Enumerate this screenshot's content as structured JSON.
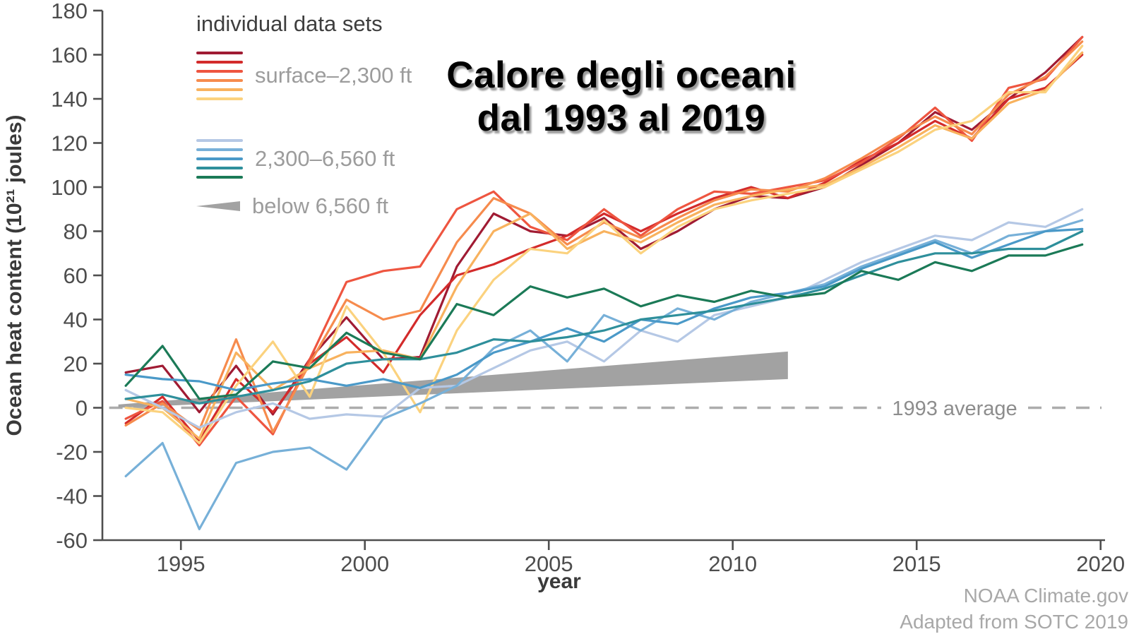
{
  "title": {
    "line1": "Calore degli oceani",
    "line2": "dal 1993 al 2019"
  },
  "legend": {
    "title": "individual data sets",
    "groups": [
      {
        "id": "surface",
        "label": "surface–2,300 ft"
      },
      {
        "id": "mid",
        "label": "2,300–6,560 ft"
      },
      {
        "id": "deep",
        "label": "below 6,560 ft"
      }
    ]
  },
  "axes": {
    "xlabel": "year",
    "ylabel": "Ocean heat content (10²¹ joules)"
  },
  "attribution": {
    "line1": "NOAA Climate.gov",
    "line2": "Adapted from SOTC 2019"
  },
  "colors": {
    "axis": "#4f4f4f",
    "tick_label": "#4d4d4d",
    "baseline_dash": "#acacac",
    "baseline_label": "#8d8d8d",
    "wedge": "#a2a2a2",
    "legend_title": "#3e3e3e",
    "legend_label": "#9c9c9c",
    "attribution": "#a8a8a8",
    "title": "#000000"
  },
  "chart_data": {
    "type": "line",
    "title": "Calore degli oceani dal 1993 al 2019",
    "xlabel": "year",
    "ylabel": "Ocean heat content (10²¹ joules)",
    "xlim": [
      1993,
      2020.2
    ],
    "ylim": [
      -60,
      180
    ],
    "x_ticks": [
      1995,
      2000,
      2005,
      2010,
      2015,
      2020
    ],
    "y_ticks": [
      180,
      160,
      140,
      120,
      100,
      80,
      60,
      40,
      20,
      0,
      -20,
      -40,
      -60
    ],
    "grid": false,
    "legend_position": "top-left",
    "baseline": {
      "value": 0,
      "label": "1993 average",
      "style": "dashed"
    },
    "x_years": [
      1993.5,
      1994.5,
      1995.5,
      1996.5,
      1997.5,
      1998.5,
      1999.5,
      2000.5,
      2001.5,
      2002.5,
      2003.5,
      2004.5,
      2005.5,
      2006.5,
      2007.5,
      2008.5,
      2009.5,
      2010.5,
      2011.5,
      2012.5,
      2013.5,
      2014.5,
      2015.5,
      2016.5,
      2017.5,
      2018.5,
      2019.5
    ],
    "series": [
      {
        "name": "surface-darkred",
        "group": "surface",
        "color": "#a01b33",
        "values": [
          16,
          19,
          -2,
          19,
          -3,
          22,
          41,
          22,
          23,
          64,
          88,
          80,
          78,
          86,
          72,
          80,
          90,
          96,
          95,
          100,
          110,
          120,
          134,
          126,
          140,
          152,
          168
        ]
      },
      {
        "name": "surface-red",
        "group": "surface",
        "color": "#d32b2b",
        "values": [
          -7,
          5,
          -15,
          13,
          -2,
          20,
          32,
          16,
          42,
          60,
          65,
          72,
          78,
          88,
          80,
          88,
          95,
          100,
          95,
          102,
          112,
          120,
          130,
          122,
          140,
          145,
          160
        ]
      },
      {
        "name": "surface-redorange",
        "group": "surface",
        "color": "#ee5540",
        "values": [
          -5,
          3,
          -17,
          5,
          -12,
          22,
          57,
          62,
          64,
          90,
          98,
          82,
          76,
          90,
          78,
          90,
          98,
          97,
          100,
          103,
          111,
          122,
          136,
          121,
          145,
          149,
          168
        ]
      },
      {
        "name": "surface-orange",
        "group": "surface",
        "color": "#f68b4d",
        "values": [
          -8,
          2,
          -10,
          31,
          -11,
          20,
          49,
          40,
          44,
          75,
          95,
          88,
          74,
          84,
          77,
          86,
          94,
          99,
          98,
          104,
          113,
          123,
          132,
          124,
          142,
          150,
          166
        ]
      },
      {
        "name": "surface-amber",
        "group": "surface",
        "color": "#f8b25e",
        "values": [
          4,
          0,
          -14,
          25,
          8,
          18,
          25,
          26,
          22,
          55,
          80,
          88,
          72,
          80,
          75,
          84,
          92,
          96,
          99,
          101,
          109,
          118,
          128,
          122,
          138,
          144,
          161
        ]
      },
      {
        "name": "surface-yellow",
        "group": "surface",
        "color": "#fbd27e",
        "values": [
          0,
          -2,
          -16,
          10,
          30,
          5,
          46,
          25,
          -2,
          35,
          58,
          72,
          70,
          85,
          70,
          82,
          90,
          94,
          97,
          100,
          108,
          116,
          126,
          130,
          143,
          143,
          164
        ]
      },
      {
        "name": "mid-periwinkle",
        "group": "mid",
        "color": "#b5c8e5",
        "values": [
          8,
          0,
          -9,
          -2,
          2,
          -5,
          -3,
          -4,
          9,
          10,
          18,
          26,
          30,
          21,
          35,
          30,
          42,
          46,
          50,
          58,
          66,
          72,
          78,
          76,
          84,
          82,
          90
        ]
      },
      {
        "name": "mid-lightblue",
        "group": "mid",
        "color": "#77b0d8",
        "values": [
          -31,
          -16,
          -55,
          -25,
          -20,
          -18,
          -28,
          -5,
          2,
          10,
          27,
          35,
          21,
          42,
          35,
          45,
          40,
          48,
          52,
          56,
          64,
          70,
          76,
          70,
          78,
          80,
          85
        ]
      },
      {
        "name": "mid-blue",
        "group": "mid",
        "color": "#4a99c8",
        "values": [
          15,
          13,
          12,
          8,
          11,
          13,
          10,
          13,
          9,
          15,
          25,
          30,
          36,
          30,
          40,
          38,
          45,
          50,
          52,
          55,
          63,
          69,
          75,
          68,
          74,
          80,
          81
        ]
      },
      {
        "name": "mid-teal",
        "group": "mid",
        "color": "#2e8f9b",
        "values": [
          4,
          6,
          2,
          5,
          8,
          12,
          20,
          22,
          22,
          25,
          31,
          30,
          32,
          35,
          40,
          42,
          44,
          47,
          50,
          54,
          60,
          66,
          70,
          70,
          72,
          72,
          80
        ]
      },
      {
        "name": "mid-darkteal",
        "group": "mid",
        "color": "#1b7a57",
        "values": [
          10,
          28,
          4,
          6,
          21,
          18,
          34,
          25,
          22,
          47,
          42,
          55,
          50,
          54,
          46,
          51,
          48,
          53,
          50,
          52,
          62,
          58,
          66,
          62,
          69,
          69,
          74
        ]
      }
    ],
    "wedge": {
      "name": "below-6560ft-trend",
      "color": "#a2a2a2",
      "x_start": 1993.3,
      "x_end": 2011.5,
      "top_start": 1.5,
      "top_end": 25.5,
      "bottom_start": 0,
      "bottom_end": 13
    }
  }
}
